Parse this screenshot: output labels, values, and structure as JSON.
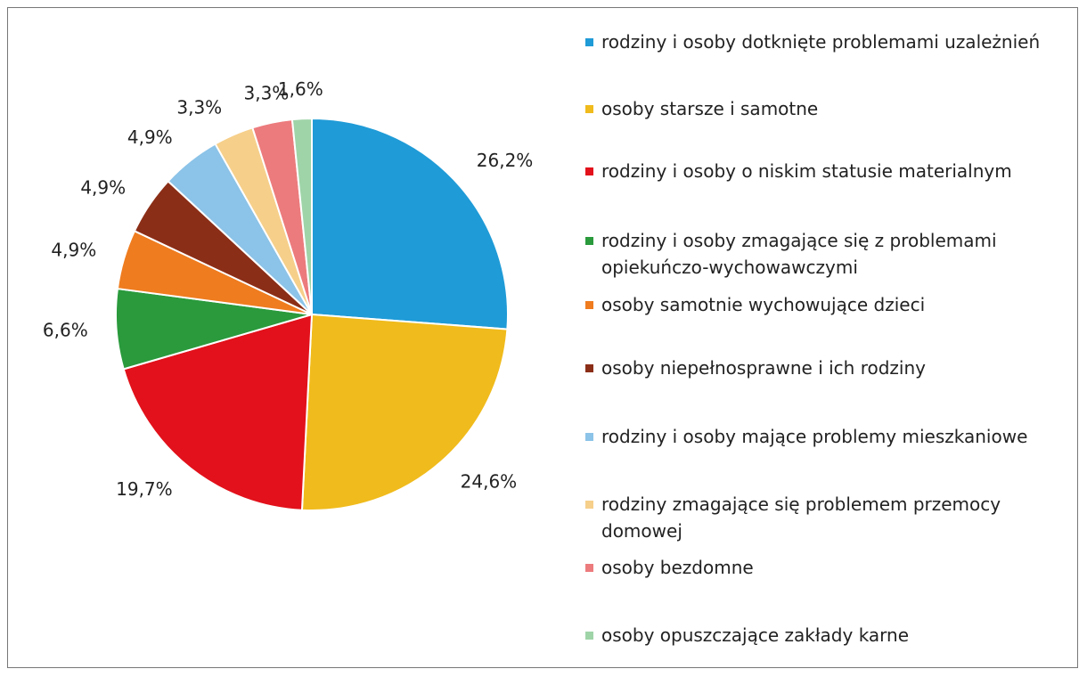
{
  "chart_data": {
    "type": "pie",
    "categories": [
      "rodziny i osoby dotknięte problemami uzależnień",
      "osoby starsze i samotne",
      "rodziny i osoby o niskim statusie materialnym",
      "rodziny i osoby zmagające się z problemami opiekuńczo-wychowawczymi",
      "osoby samotnie wychowujące dzieci",
      "osoby niepełnosprawne i ich rodziny",
      "rodziny i osoby mające problemy mieszkaniowe",
      "rodziny zmagające się problemem przemocy domowej",
      "osoby bezdomne",
      "osoby opuszczające zakłady karne"
    ],
    "values": [
      26.2,
      24.6,
      19.7,
      6.6,
      4.9,
      4.9,
      4.9,
      3.3,
      3.3,
      1.6
    ],
    "value_labels": [
      "26,2%",
      "24,6%",
      "19,7%",
      "6,6%",
      "4,9%",
      "4,9%",
      "4,9%",
      "3,3%",
      "3,3%",
      "1,6%"
    ],
    "colors": [
      "#1f9bd7",
      "#f0bb1c",
      "#e2111b",
      "#2a9a3c",
      "#ef7c1f",
      "#8b2e17",
      "#8cc3e8",
      "#f6cf8a",
      "#ec7b7d",
      "#9fd4a8"
    ],
    "legend": "right"
  }
}
